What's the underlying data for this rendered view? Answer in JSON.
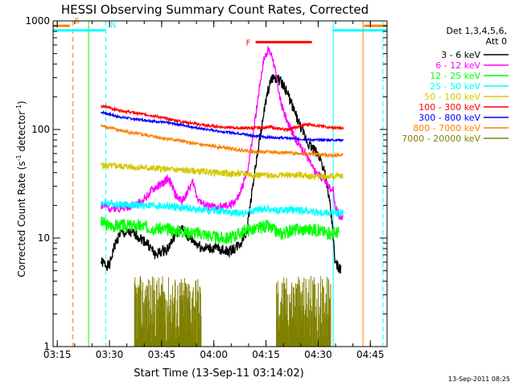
{
  "chart_data": {
    "type": "line",
    "title": "HESSI Observing Summary Count Rates, Corrected",
    "xlabel": "Start Time (13-Sep-11 03:14:02)",
    "ylabel_main": "Corrected Count Rate (s",
    "ylabel_sup1": "-1",
    "ylabel_mid": " detector",
    "ylabel_sup2": "-1",
    "ylabel_end": ")",
    "xlim": [
      3.23,
      4.83
    ],
    "ylim": [
      1,
      1000
    ],
    "log_y": true,
    "x_ticks": [
      {
        "v": 3.25,
        "label": "03:15"
      },
      {
        "v": 3.5,
        "label": "03:30"
      },
      {
        "v": 3.75,
        "label": "03:45"
      },
      {
        "v": 4.0,
        "label": "04:00"
      },
      {
        "v": 4.25,
        "label": "04:15"
      },
      {
        "v": 4.5,
        "label": "04:30"
      },
      {
        "v": 4.75,
        "label": "04:45"
      }
    ],
    "y_ticks": [
      {
        "v": 1,
        "label": "1"
      },
      {
        "v": 10,
        "label": "10"
      },
      {
        "v": 100,
        "label": "100"
      },
      {
        "v": 1000,
        "label": "1000"
      }
    ],
    "legend": {
      "header1": "Det 1,3,4,5,6,",
      "header2": "Att 0",
      "placement": "right-outside",
      "entries": [
        {
          "label": "3 - 6 keV",
          "color": "#000000"
        },
        {
          "label": "6 - 12 keV",
          "color": "#ff00ff"
        },
        {
          "label": "12 - 25 keV",
          "color": "#00ff00"
        },
        {
          "label": "25 - 50 keV",
          "color": "#00ffff"
        },
        {
          "label": "50 - 100 keV",
          "color": "#d4c800"
        },
        {
          "label": "100 - 300 keV",
          "color": "#ff0000"
        },
        {
          "label": "300 - 800 keV",
          "color": "#0000ff"
        },
        {
          "label": "800 - 7000 keV",
          "color": "#ff8000"
        },
        {
          "label": "7000 - 20000 keV",
          "color": "#808000"
        }
      ]
    },
    "series": [
      {
        "name": "3 - 6 keV",
        "color": "#000000",
        "noise": 0.05,
        "seed": 1,
        "points": [
          [
            3.46,
            6
          ],
          [
            3.5,
            5.5
          ],
          [
            3.52,
            8
          ],
          [
            3.55,
            11
          ],
          [
            3.62,
            11
          ],
          [
            3.68,
            9
          ],
          [
            3.72,
            7
          ],
          [
            3.78,
            8
          ],
          [
            3.82,
            11
          ],
          [
            3.85,
            12
          ],
          [
            3.88,
            10
          ],
          [
            3.95,
            8
          ],
          [
            4.02,
            8
          ],
          [
            4.07,
            7.5
          ],
          [
            4.1,
            8
          ],
          [
            4.13,
            9
          ],
          [
            4.16,
            12
          ],
          [
            4.18,
            25
          ],
          [
            4.2,
            45
          ],
          [
            4.22,
            80
          ],
          [
            4.24,
            140
          ],
          [
            4.26,
            230
          ],
          [
            4.28,
            300
          ],
          [
            4.3,
            300
          ],
          [
            4.33,
            260
          ],
          [
            4.36,
            200
          ],
          [
            4.39,
            140
          ],
          [
            4.42,
            100
          ],
          [
            4.45,
            75
          ],
          [
            4.48,
            65
          ],
          [
            4.51,
            55
          ],
          [
            4.53,
            40
          ],
          [
            4.55,
            25
          ],
          [
            4.57,
            12
          ],
          [
            4.58,
            6
          ],
          [
            4.61,
            5
          ]
        ]
      },
      {
        "name": "6 - 12 keV",
        "color": "#ff00ff",
        "noise": 0.04,
        "seed": 2,
        "points": [
          [
            3.46,
            20
          ],
          [
            3.5,
            19
          ],
          [
            3.55,
            19
          ],
          [
            3.62,
            20
          ],
          [
            3.66,
            22
          ],
          [
            3.7,
            27
          ],
          [
            3.73,
            30
          ],
          [
            3.76,
            32
          ],
          [
            3.78,
            36
          ],
          [
            3.8,
            30
          ],
          [
            3.82,
            24
          ],
          [
            3.85,
            22
          ],
          [
            3.87,
            26
          ],
          [
            3.9,
            33
          ],
          [
            3.92,
            24
          ],
          [
            3.95,
            20
          ],
          [
            4.02,
            19
          ],
          [
            4.08,
            20
          ],
          [
            4.12,
            24
          ],
          [
            4.16,
            40
          ],
          [
            4.2,
            130
          ],
          [
            4.22,
            260
          ],
          [
            4.24,
            450
          ],
          [
            4.26,
            540
          ],
          [
            4.28,
            480
          ],
          [
            4.3,
            300
          ],
          [
            4.32,
            180
          ],
          [
            4.35,
            120
          ],
          [
            4.38,
            90
          ],
          [
            4.41,
            72
          ],
          [
            4.44,
            60
          ],
          [
            4.46,
            50
          ],
          [
            4.48,
            42
          ],
          [
            4.5,
            38
          ],
          [
            4.53,
            35
          ],
          [
            4.55,
            30
          ],
          [
            4.57,
            28
          ],
          [
            4.58,
            20
          ],
          [
            4.6,
            16
          ],
          [
            4.62,
            15
          ]
        ]
      },
      {
        "name": "12 - 25 keV",
        "color": "#00ff00",
        "noise": 0.06,
        "seed": 3,
        "points": [
          [
            3.46,
            14
          ],
          [
            3.5,
            13
          ],
          [
            3.55,
            13
          ],
          [
            3.62,
            13
          ],
          [
            3.7,
            12.5
          ],
          [
            3.78,
            12
          ],
          [
            3.85,
            11.5
          ],
          [
            3.95,
            11
          ],
          [
            4.02,
            10
          ],
          [
            4.08,
            10
          ],
          [
            4.12,
            11
          ],
          [
            4.16,
            12
          ],
          [
            4.2,
            12
          ],
          [
            4.25,
            13
          ],
          [
            4.28,
            12
          ],
          [
            4.32,
            11
          ],
          [
            4.36,
            11.5
          ],
          [
            4.4,
            12
          ],
          [
            4.44,
            12
          ],
          [
            4.48,
            12
          ],
          [
            4.52,
            11.5
          ],
          [
            4.56,
            11
          ],
          [
            4.6,
            11.5
          ]
        ]
      },
      {
        "name": "25 - 50 keV",
        "color": "#00ffff",
        "noise": 0.035,
        "seed": 4,
        "points": [
          [
            3.46,
            21
          ],
          [
            3.5,
            21
          ],
          [
            3.55,
            20.5
          ],
          [
            3.62,
            20
          ],
          [
            3.7,
            20
          ],
          [
            3.78,
            19.5
          ],
          [
            3.85,
            19
          ],
          [
            3.95,
            18
          ],
          [
            4.02,
            18
          ],
          [
            4.08,
            17
          ],
          [
            4.15,
            17
          ],
          [
            4.2,
            18
          ],
          [
            4.25,
            18.5
          ],
          [
            4.3,
            18
          ],
          [
            4.36,
            18
          ],
          [
            4.42,
            18
          ],
          [
            4.48,
            17.5
          ],
          [
            4.52,
            17
          ],
          [
            4.56,
            17
          ],
          [
            4.62,
            17
          ]
        ]
      },
      {
        "name": "50 - 100 keV",
        "color": "#d4c800",
        "noise": 0.03,
        "seed": 5,
        "points": [
          [
            3.46,
            47
          ],
          [
            3.5,
            46
          ],
          [
            3.55,
            46
          ],
          [
            3.62,
            45
          ],
          [
            3.7,
            44
          ],
          [
            3.78,
            43
          ],
          [
            3.85,
            42
          ],
          [
            3.95,
            41
          ],
          [
            4.02,
            40
          ],
          [
            4.08,
            39
          ],
          [
            4.15,
            39
          ],
          [
            4.2,
            38
          ],
          [
            4.25,
            38
          ],
          [
            4.3,
            38
          ],
          [
            4.36,
            38
          ],
          [
            4.42,
            38
          ],
          [
            4.48,
            37
          ],
          [
            4.52,
            37
          ],
          [
            4.56,
            37
          ],
          [
            4.62,
            37
          ]
        ]
      },
      {
        "name": "100 - 300 keV",
        "color": "#ff0000",
        "noise": 0.012,
        "seed": 6,
        "points": [
          [
            3.46,
            165
          ],
          [
            3.5,
            158
          ],
          [
            3.55,
            150
          ],
          [
            3.62,
            142
          ],
          [
            3.7,
            135
          ],
          [
            3.78,
            125
          ],
          [
            3.85,
            118
          ],
          [
            3.92,
            112
          ],
          [
            3.98,
            108
          ],
          [
            4.05,
            105
          ],
          [
            4.12,
            103
          ],
          [
            4.18,
            103
          ],
          [
            4.22,
            104
          ],
          [
            4.27,
            105
          ],
          [
            4.3,
            102
          ],
          [
            4.35,
            100
          ],
          [
            4.4,
            105
          ],
          [
            4.43,
            110
          ],
          [
            4.46,
            112
          ],
          [
            4.5,
            108
          ],
          [
            4.55,
            105
          ],
          [
            4.62,
            102
          ]
        ]
      },
      {
        "name": "300 - 800 keV",
        "color": "#0000ff",
        "noise": 0.01,
        "seed": 7,
        "points": [
          [
            3.46,
            145
          ],
          [
            3.5,
            138
          ],
          [
            3.55,
            130
          ],
          [
            3.62,
            125
          ],
          [
            3.7,
            120
          ],
          [
            3.78,
            115
          ],
          [
            3.85,
            110
          ],
          [
            3.92,
            103
          ],
          [
            4.0,
            98
          ],
          [
            4.05,
            95
          ],
          [
            4.12,
            92
          ],
          [
            4.18,
            88
          ],
          [
            4.25,
            85
          ],
          [
            4.32,
            84
          ],
          [
            4.4,
            82
          ],
          [
            4.48,
            80
          ],
          [
            4.55,
            80
          ],
          [
            4.62,
            80
          ]
        ]
      },
      {
        "name": "800 - 7000 keV",
        "color": "#ff8000",
        "noise": 0.015,
        "seed": 8,
        "points": [
          [
            3.46,
            108
          ],
          [
            3.5,
            104
          ],
          [
            3.55,
            98
          ],
          [
            3.62,
            92
          ],
          [
            3.7,
            87
          ],
          [
            3.78,
            82
          ],
          [
            3.85,
            78
          ],
          [
            3.92,
            73
          ],
          [
            4.0,
            70
          ],
          [
            4.05,
            68
          ],
          [
            4.12,
            65
          ],
          [
            4.2,
            62
          ],
          [
            4.27,
            62
          ],
          [
            4.35,
            61
          ],
          [
            4.42,
            60
          ],
          [
            4.5,
            59
          ],
          [
            4.56,
            58
          ],
          [
            4.62,
            58
          ]
        ]
      }
    ],
    "flag_bars": [
      {
        "label": "S",
        "color": "#ff8000",
        "y": 0.985,
        "segments": [
          [
            3.23,
            3.31
          ],
          [
            4.72,
            4.83
          ]
        ]
      },
      {
        "label": "N",
        "color": "#00ffff",
        "y": 0.971,
        "segments": [
          [
            3.23,
            3.48
          ],
          [
            4.57,
            4.83
          ]
        ]
      },
      {
        "label": "F",
        "color": "#ff0000",
        "y": 0.935,
        "segments": [
          [
            4.2,
            4.47
          ]
        ]
      }
    ],
    "vertical_markers": [
      {
        "x": 3.325,
        "color": "#ff8000",
        "style": "dashed"
      },
      {
        "x": 3.4,
        "color": "#00ff00",
        "style": "solid"
      },
      {
        "x": 3.482,
        "color": "#00ffff",
        "style": "dashed"
      },
      {
        "x": 4.572,
        "color": "#00ffff",
        "style": "solid"
      },
      {
        "x": 4.715,
        "color": "#ff8000",
        "style": "solid"
      },
      {
        "x": 4.81,
        "color": "#00ffff",
        "style": "dashed"
      }
    ],
    "high_energy_bursts": {
      "color": "#808000",
      "ranges": [
        [
          3.62,
          3.94
        ],
        [
          4.3,
          4.56
        ]
      ],
      "max_value": 4.5
    },
    "timestamp": "13-Sep-2011 08:25"
  }
}
